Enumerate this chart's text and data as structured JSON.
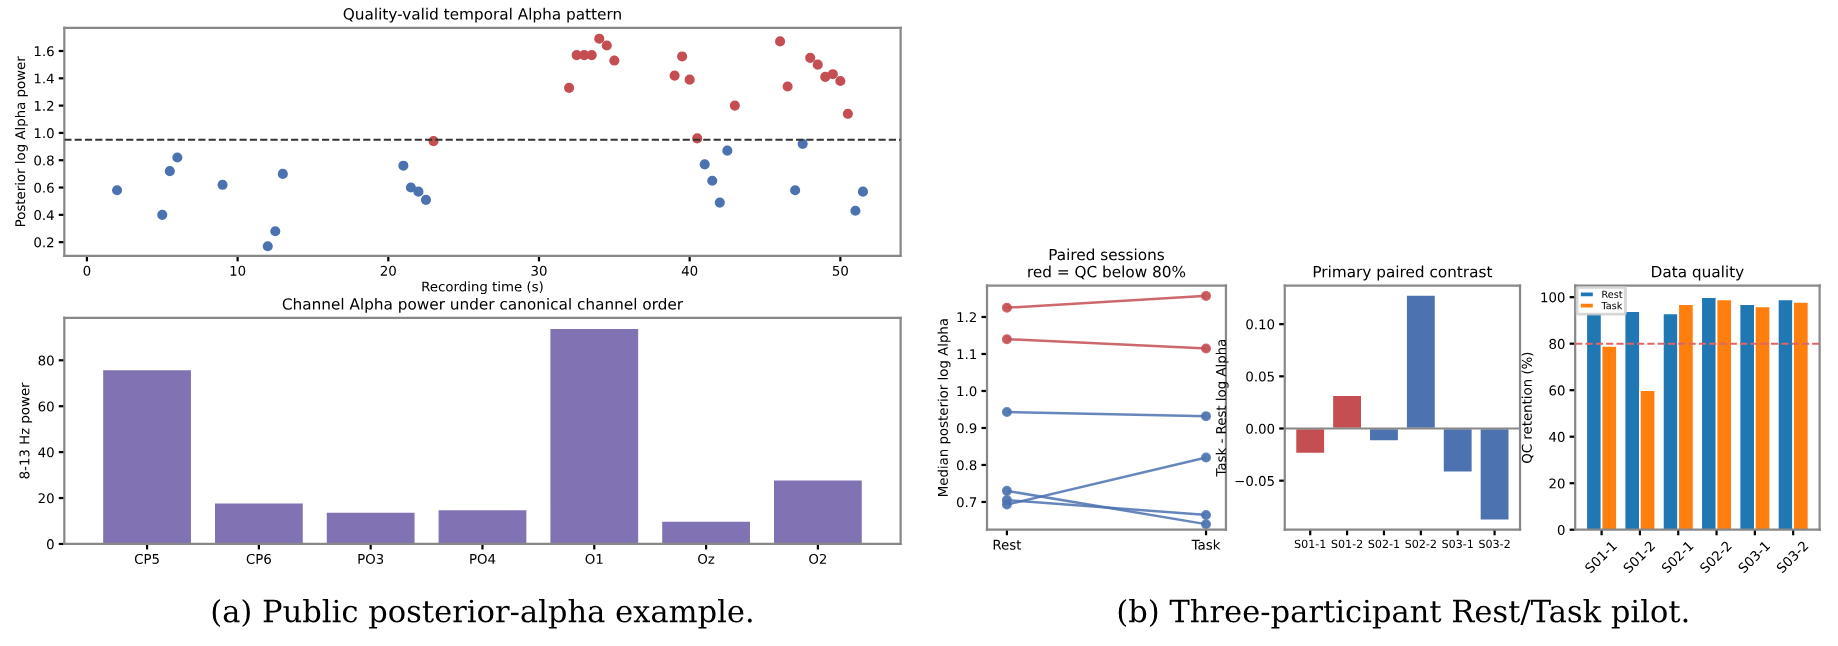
{
  "chart_data": [
    {
      "type": "scatter",
      "title": "Quality-valid temporal Alpha pattern",
      "xlabel": "Recording time (s)",
      "ylabel": "Posterior log Alpha power",
      "xlim": [
        -1.5,
        54
      ],
      "xticks": [
        0,
        10,
        20,
        30,
        40,
        50
      ],
      "ylim": [
        0.1,
        1.77
      ],
      "yticks": [
        0.2,
        0.4,
        0.6,
        0.8,
        {
          "value": 1.0,
          "label": "1.0"
        },
        1.2,
        1.4,
        1.6
      ],
      "marker": "circle",
      "series": [
        {
          "color": "#4c72b0",
          "x": [
            2,
            5,
            5.5,
            6,
            9,
            12,
            12.5,
            13,
            21,
            21.5,
            22,
            22.5,
            41,
            41.5,
            42,
            42.5,
            47,
            47.5,
            51,
            51.5
          ],
          "values": [
            0.58,
            0.4,
            0.72,
            0.82,
            0.62,
            0.17,
            0.28,
            0.7,
            0.76,
            0.6,
            0.57,
            0.51,
            0.77,
            0.65,
            0.49,
            0.87,
            0.58,
            0.92,
            0.43,
            0.57
          ]
        },
        {
          "color": "#c44e52",
          "x": [
            23,
            32,
            32.5,
            33,
            33.5,
            34,
            34.5,
            35,
            39,
            39.5,
            40,
            40.5,
            43,
            46,
            46.5,
            48,
            48.5,
            49,
            49.5,
            50,
            50.5
          ],
          "values": [
            0.94,
            1.33,
            1.57,
            1.57,
            1.57,
            1.69,
            1.64,
            1.53,
            1.42,
            1.56,
            1.39,
            0.96,
            1.2,
            1.67,
            1.34,
            1.55,
            1.5,
            1.41,
            1.43,
            1.38,
            1.14
          ]
        }
      ],
      "ref_lines": [
        {
          "axis": "y",
          "value": 0.95,
          "color": "#333333",
          "line_style": "dashed"
        }
      ]
    },
    {
      "type": "bar",
      "title": "Channel Alpha power under canonical channel order",
      "ylabel": "8-13 Hz power",
      "categories": [
        "CP5",
        "CP6",
        "PO3",
        "PO4",
        "O1",
        "Oz",
        "O2"
      ],
      "ylim": [
        0,
        98.5
      ],
      "yticks": [
        0,
        20,
        40,
        60,
        80
      ],
      "series": [
        {
          "color": "#8172b3",
          "values": [
            76,
            18,
            14,
            15,
            94,
            10,
            28
          ]
        }
      ],
      "annotations": [
        "(a) Public posterior-alpha example."
      ]
    },
    {
      "type": "line",
      "title": "Paired sessions\nred = QC below 80%",
      "ylabel": "Median posterior log Alpha",
      "categories": [
        "Rest",
        "Task"
      ],
      "ylim": [
        0.625,
        1.285
      ],
      "yticks": [
        0.7,
        0.8,
        0.9,
        {
          "value": 1.0,
          "label": "1.0"
        },
        1.1,
        1.2
      ],
      "marker": "circle",
      "line_style": "solid",
      "series": [
        {
          "color": "#c44e52",
          "values": [
            1.225,
            1.257
          ]
        },
        {
          "color": "#c44e52",
          "values": [
            1.14,
            1.115
          ]
        },
        {
          "color": "#4c72b0",
          "values": [
            0.943,
            0.932
          ]
        },
        {
          "color": "#4c72b0",
          "values": [
            0.693,
            0.82
          ]
        },
        {
          "color": "#4c72b0",
          "values": [
            0.73,
            0.64
          ]
        },
        {
          "color": "#4c72b0",
          "values": [
            0.705,
            0.665
          ]
        }
      ]
    },
    {
      "type": "bar",
      "title": "Primary paired contrast",
      "ylabel": "Task - Rest log Alpha",
      "categories": [
        "S01-1",
        "S01-2",
        "S02-1",
        "S02-2",
        "S03-1",
        "S03-2"
      ],
      "ylim": [
        -0.097,
        0.137
      ],
      "yticks": [
        {
          "value": -0.05,
          "label": "−0.05"
        },
        {
          "value": 0,
          "label": "0.00"
        },
        {
          "value": 0.05,
          "label": "0.05"
        },
        {
          "value": 0.1,
          "label": "0.10"
        }
      ],
      "series": [
        {
          "colors": [
            "#c44e52",
            "#c44e52",
            "#4c72b0",
            "#4c72b0",
            "#4c72b0",
            "#4c72b0"
          ],
          "values": [
            -0.024,
            0.032,
            -0.012,
            0.128,
            -0.042,
            -0.088
          ]
        }
      ],
      "ref_lines": [
        {
          "axis": "y",
          "value": 0,
          "color": "#888888",
          "line_style": "solid"
        }
      ]
    },
    {
      "type": "bar",
      "title": "Data quality",
      "ylabel": "QC retention (%)",
      "categories": [
        "S01-1",
        "S01-2",
        "S02-1",
        "S02-2",
        "S03-1",
        "S03-2"
      ],
      "ylim": [
        0,
        105
      ],
      "yticks": [
        0,
        20,
        40,
        60,
        80,
        100
      ],
      "legend": "top left",
      "series": [
        {
          "name": "Rest",
          "color": "#1f77b4",
          "values": [
            93,
            94,
            93,
            100,
            97,
            99
          ]
        },
        {
          "name": "Task",
          "color": "#ff7f0e",
          "values": [
            79,
            60,
            97,
            99,
            96,
            98
          ]
        }
      ],
      "ref_lines": [
        {
          "axis": "y",
          "value": 80,
          "color": "#e06666",
          "line_style": "dashed"
        }
      ],
      "annotations": [
        "(b) Three-participant Rest/Task pilot."
      ]
    }
  ]
}
